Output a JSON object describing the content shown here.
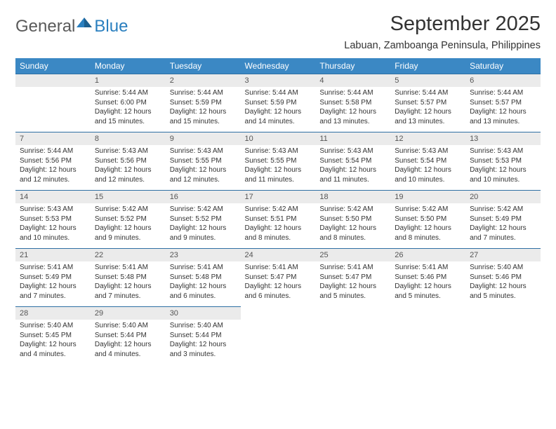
{
  "brand": {
    "part1": "General",
    "part2": "Blue"
  },
  "title": "September 2025",
  "location": "Labuan, Zamboanga Peninsula, Philippines",
  "header_bg": "#3b88c4",
  "daynum_bg": "#ebebeb",
  "rule_color": "#2e6fa3",
  "text_color": "#333333",
  "week_labels": [
    "Sunday",
    "Monday",
    "Tuesday",
    "Wednesday",
    "Thursday",
    "Friday",
    "Saturday"
  ],
  "first_weekday": 1,
  "days_in_month": 30,
  "days": {
    "1": {
      "sunrise": "5:44 AM",
      "sunset": "6:00 PM",
      "daylight": "12 hours and 15 minutes."
    },
    "2": {
      "sunrise": "5:44 AM",
      "sunset": "5:59 PM",
      "daylight": "12 hours and 15 minutes."
    },
    "3": {
      "sunrise": "5:44 AM",
      "sunset": "5:59 PM",
      "daylight": "12 hours and 14 minutes."
    },
    "4": {
      "sunrise": "5:44 AM",
      "sunset": "5:58 PM",
      "daylight": "12 hours and 13 minutes."
    },
    "5": {
      "sunrise": "5:44 AM",
      "sunset": "5:57 PM",
      "daylight": "12 hours and 13 minutes."
    },
    "6": {
      "sunrise": "5:44 AM",
      "sunset": "5:57 PM",
      "daylight": "12 hours and 13 minutes."
    },
    "7": {
      "sunrise": "5:44 AM",
      "sunset": "5:56 PM",
      "daylight": "12 hours and 12 minutes."
    },
    "8": {
      "sunrise": "5:43 AM",
      "sunset": "5:56 PM",
      "daylight": "12 hours and 12 minutes."
    },
    "9": {
      "sunrise": "5:43 AM",
      "sunset": "5:55 PM",
      "daylight": "12 hours and 12 minutes."
    },
    "10": {
      "sunrise": "5:43 AM",
      "sunset": "5:55 PM",
      "daylight": "12 hours and 11 minutes."
    },
    "11": {
      "sunrise": "5:43 AM",
      "sunset": "5:54 PM",
      "daylight": "12 hours and 11 minutes."
    },
    "12": {
      "sunrise": "5:43 AM",
      "sunset": "5:54 PM",
      "daylight": "12 hours and 10 minutes."
    },
    "13": {
      "sunrise": "5:43 AM",
      "sunset": "5:53 PM",
      "daylight": "12 hours and 10 minutes."
    },
    "14": {
      "sunrise": "5:43 AM",
      "sunset": "5:53 PM",
      "daylight": "12 hours and 10 minutes."
    },
    "15": {
      "sunrise": "5:42 AM",
      "sunset": "5:52 PM",
      "daylight": "12 hours and 9 minutes."
    },
    "16": {
      "sunrise": "5:42 AM",
      "sunset": "5:52 PM",
      "daylight": "12 hours and 9 minutes."
    },
    "17": {
      "sunrise": "5:42 AM",
      "sunset": "5:51 PM",
      "daylight": "12 hours and 8 minutes."
    },
    "18": {
      "sunrise": "5:42 AM",
      "sunset": "5:50 PM",
      "daylight": "12 hours and 8 minutes."
    },
    "19": {
      "sunrise": "5:42 AM",
      "sunset": "5:50 PM",
      "daylight": "12 hours and 8 minutes."
    },
    "20": {
      "sunrise": "5:42 AM",
      "sunset": "5:49 PM",
      "daylight": "12 hours and 7 minutes."
    },
    "21": {
      "sunrise": "5:41 AM",
      "sunset": "5:49 PM",
      "daylight": "12 hours and 7 minutes."
    },
    "22": {
      "sunrise": "5:41 AM",
      "sunset": "5:48 PM",
      "daylight": "12 hours and 7 minutes."
    },
    "23": {
      "sunrise": "5:41 AM",
      "sunset": "5:48 PM",
      "daylight": "12 hours and 6 minutes."
    },
    "24": {
      "sunrise": "5:41 AM",
      "sunset": "5:47 PM",
      "daylight": "12 hours and 6 minutes."
    },
    "25": {
      "sunrise": "5:41 AM",
      "sunset": "5:47 PM",
      "daylight": "12 hours and 5 minutes."
    },
    "26": {
      "sunrise": "5:41 AM",
      "sunset": "5:46 PM",
      "daylight": "12 hours and 5 minutes."
    },
    "27": {
      "sunrise": "5:40 AM",
      "sunset": "5:46 PM",
      "daylight": "12 hours and 5 minutes."
    },
    "28": {
      "sunrise": "5:40 AM",
      "sunset": "5:45 PM",
      "daylight": "12 hours and 4 minutes."
    },
    "29": {
      "sunrise": "5:40 AM",
      "sunset": "5:44 PM",
      "daylight": "12 hours and 4 minutes."
    },
    "30": {
      "sunrise": "5:40 AM",
      "sunset": "5:44 PM",
      "daylight": "12 hours and 3 minutes."
    }
  },
  "labels": {
    "sunrise": "Sunrise:",
    "sunset": "Sunset:",
    "daylight": "Daylight:"
  }
}
